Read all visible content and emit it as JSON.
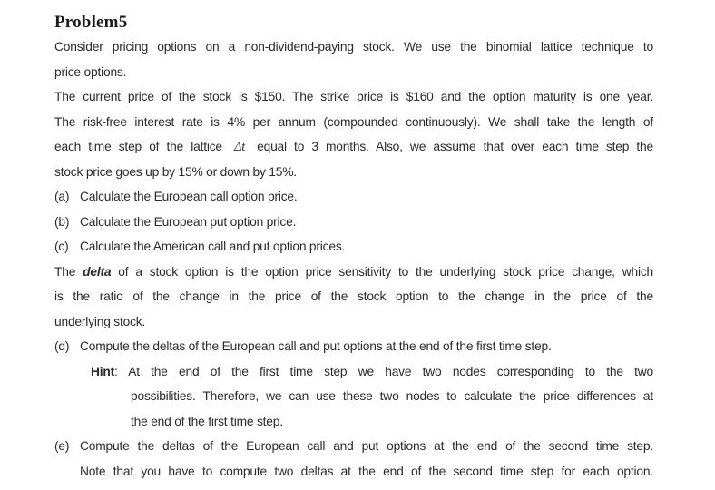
{
  "doc": {
    "heading": "Problem5",
    "intro": {
      "line1": "Consider pricing options on a non-dividend-paying stock. We use the binomial lattice technique to",
      "line2": "price options."
    },
    "setup": {
      "line1": "The current price of the stock is $150. The strike price is $160 and the option maturity is one year.",
      "line2": "The risk-free interest rate is 4% per annum (compounded continuously). We shall take the length of",
      "line3_pre": "each time step of the lattice",
      "line3_symbol": "Δt",
      "line3_post": "equal to 3 months. Also, we assume that over each time step the",
      "line4": "stock price goes up by 15% or down by 15%."
    },
    "items": {
      "a_label": "(a)",
      "a_text": "Calculate the European call option price.",
      "b_label": "(b)",
      "b_text": "Calculate the European put option price.",
      "c_label": "(c)",
      "c_text": "Calculate the American call and put option prices."
    },
    "delta_def": {
      "line1_pre": "The",
      "line1_term": "delta",
      "line1_post": "of a stock option is the option price sensitivity to the underlying stock price change, which",
      "line2": "is the ratio of the change in the price of the stock option to the change in the price of the",
      "line3": "underlying stock."
    },
    "item_d": {
      "label": "(d)",
      "text": "Compute the deltas of the European call and put options at the end of the first time step."
    },
    "hint": {
      "label": "Hint",
      "colon": ":",
      "line1": "At the end of the first time step we have two nodes corresponding to the two",
      "line2": "possibilities. Therefore, we can use these two nodes to calculate the price differences at",
      "line3": "the end of the first time step."
    },
    "item_e": {
      "label": "(e)",
      "line1": "Compute the deltas of the European call and put options at the end of the second time step.",
      "line2": "Note that you have to compute two deltas at the end of the second time step for each option."
    }
  }
}
